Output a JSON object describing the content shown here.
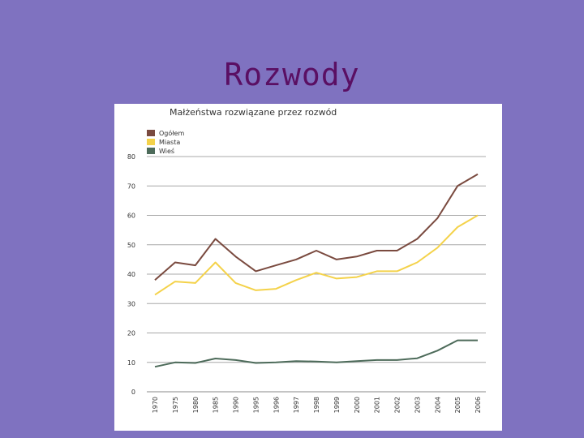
{
  "slide": {
    "title": "Rozwody"
  },
  "chart_data": {
    "type": "line",
    "title": "Małżeństwa rozwiązane przez rozwód",
    "xlabel": "",
    "ylabel": "",
    "categories": [
      "1970",
      "1975",
      "1980",
      "1985",
      "1990",
      "1995",
      "1996",
      "1997",
      "1998",
      "1999",
      "2000",
      "2001",
      "2002",
      "2003",
      "2004",
      "2005",
      "2006"
    ],
    "ylim": [
      0,
      80
    ],
    "yticks": [
      0,
      10,
      20,
      30,
      40,
      50,
      60,
      70,
      80
    ],
    "grid": true,
    "legend_position": "top-left",
    "series": [
      {
        "name": "Ogółem",
        "color": "#7a4a3f",
        "values": [
          38,
          44,
          43,
          52,
          46,
          41,
          43,
          45,
          48,
          45,
          46,
          48,
          48,
          52,
          59,
          70,
          74
        ]
      },
      {
        "name": "Miasta",
        "color": "#f4d24a",
        "values": [
          33,
          37.5,
          37,
          44,
          37,
          34.5,
          35,
          38,
          40.5,
          38.5,
          39,
          41,
          41,
          44,
          49,
          56,
          60
        ]
      },
      {
        "name": "Wieś",
        "color": "#4d6b5a",
        "values": [
          8.5,
          10,
          9.8,
          11.3,
          10.8,
          9.8,
          10,
          10.4,
          10.3,
          10,
          10.4,
          10.8,
          10.8,
          11.4,
          14,
          17.5,
          17.5
        ]
      }
    ]
  }
}
